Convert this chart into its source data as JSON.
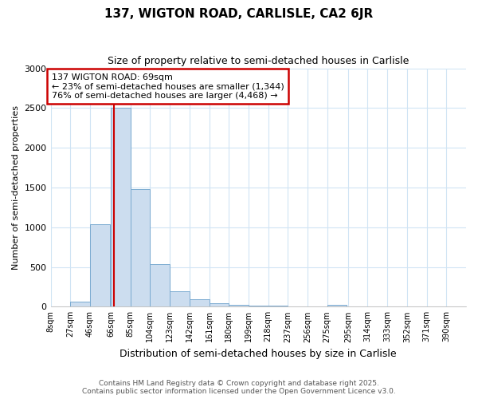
{
  "title1": "137, WIGTON ROAD, CARLISLE, CA2 6JR",
  "title2": "Size of property relative to semi-detached houses in Carlisle",
  "xlabel": "Distribution of semi-detached houses by size in Carlisle",
  "ylabel": "Number of semi-detached properties",
  "bin_labels": [
    "8sqm",
    "27sqm",
    "46sqm",
    "66sqm",
    "85sqm",
    "104sqm",
    "123sqm",
    "142sqm",
    "161sqm",
    "180sqm",
    "199sqm",
    "218sqm",
    "237sqm",
    "256sqm",
    "275sqm",
    "295sqm",
    "314sqm",
    "333sqm",
    "352sqm",
    "371sqm",
    "390sqm"
  ],
  "bin_edges": [
    8,
    27,
    46,
    66,
    85,
    104,
    123,
    142,
    161,
    180,
    199,
    218,
    237,
    256,
    275,
    295,
    314,
    333,
    352,
    371,
    390
  ],
  "bar_heights": [
    0,
    60,
    1040,
    2500,
    1480,
    540,
    190,
    90,
    45,
    25,
    15,
    10,
    5,
    2,
    20,
    0,
    0,
    0,
    0,
    0,
    0
  ],
  "bar_color": "#ccddef",
  "bar_edge_color": "#7aaad0",
  "subject_size": 69,
  "subject_label": "137 WIGTON ROAD: 69sqm",
  "pct_smaller": 23,
  "pct_larger": 76,
  "count_smaller": 1344,
  "count_larger": 4468,
  "vline_color": "#cc0000",
  "annotation_box_color": "#cc0000",
  "ylim": [
    0,
    3000
  ],
  "yticks": [
    0,
    500,
    1000,
    1500,
    2000,
    2500,
    3000
  ],
  "footer1": "Contains HM Land Registry data © Crown copyright and database right 2025.",
  "footer2": "Contains public sector information licensed under the Open Government Licence v3.0.",
  "bg_color": "#ffffff",
  "grid_color": "#d0e4f4"
}
